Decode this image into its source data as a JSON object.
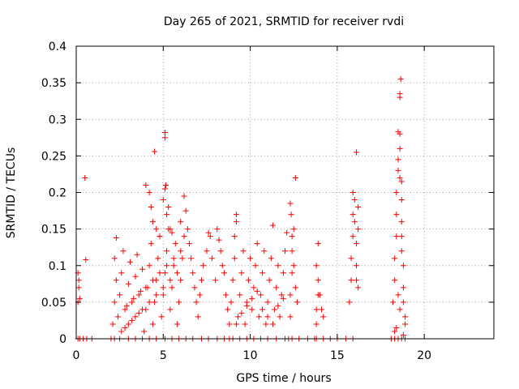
{
  "chart_data": {
    "type": "scatter",
    "title": "Day 265 of 2021, SRMTID for receiver rvdi",
    "xlabel": "GPS time / hours",
    "ylabel": "SRMTID / TECUs",
    "xlim": [
      0,
      24
    ],
    "ylim": [
      0,
      0.4
    ],
    "x_ticks": [
      0,
      5,
      10,
      15,
      20
    ],
    "x_tick_labels": [
      "0",
      "5",
      "10",
      "15",
      "20"
    ],
    "y_ticks": [
      0,
      0.05,
      0.1,
      0.15,
      0.2,
      0.25,
      0.3,
      0.35,
      0.4
    ],
    "y_tick_labels": [
      "0",
      "0.05",
      "0.1",
      "0.15",
      "0.2",
      "0.25",
      "0.3",
      "0.35",
      "0.4"
    ],
    "grid": true,
    "marker": "+",
    "color": "#ff0000",
    "series": [
      {
        "name": "SRMTID",
        "points": [
          [
            0.1,
            0.0
          ],
          [
            0.2,
            0.0
          ],
          [
            0.4,
            0.0
          ],
          [
            0.6,
            0.0
          ],
          [
            0.9,
            0.0
          ],
          [
            0.1,
            0.09
          ],
          [
            0.15,
            0.07
          ],
          [
            0.1,
            0.05
          ],
          [
            0.2,
            0.055
          ],
          [
            0.15,
            0.08
          ],
          [
            0.5,
            0.22
          ],
          [
            0.55,
            0.108
          ],
          [
            2.0,
            0.0
          ],
          [
            2.2,
            0.0
          ],
          [
            2.5,
            0.0
          ],
          [
            3.0,
            0.0
          ],
          [
            3.4,
            0.0
          ],
          [
            3.8,
            0.0
          ],
          [
            4.2,
            0.0
          ],
          [
            4.6,
            0.0
          ],
          [
            5.1,
            0.0
          ],
          [
            5.5,
            0.0
          ],
          [
            5.9,
            0.0
          ],
          [
            6.3,
            0.0
          ],
          [
            6.7,
            0.0
          ],
          [
            7.2,
            0.0
          ],
          [
            7.6,
            0.0
          ],
          [
            8.1,
            0.0
          ],
          [
            8.5,
            0.0
          ],
          [
            2.1,
            0.02
          ],
          [
            2.2,
            0.05
          ],
          [
            2.3,
            0.08
          ],
          [
            2.2,
            0.11
          ],
          [
            2.3,
            0.138
          ],
          [
            2.4,
            0.03
          ],
          [
            2.5,
            0.06
          ],
          [
            2.6,
            0.09
          ],
          [
            2.7,
            0.12
          ],
          [
            2.8,
            0.015
          ],
          [
            2.9,
            0.045
          ],
          [
            3.0,
            0.075
          ],
          [
            3.1,
            0.105
          ],
          [
            3.2,
            0.025
          ],
          [
            3.3,
            0.055
          ],
          [
            3.4,
            0.085
          ],
          [
            3.5,
            0.115
          ],
          [
            3.6,
            0.035
          ],
          [
            3.7,
            0.065
          ],
          [
            3.8,
            0.095
          ],
          [
            3.9,
            0.01
          ],
          [
            4.0,
            0.04
          ],
          [
            4.1,
            0.07
          ],
          [
            4.2,
            0.1
          ],
          [
            4.3,
            0.13
          ],
          [
            4.4,
            0.02
          ],
          [
            4.5,
            0.05
          ],
          [
            4.6,
            0.08
          ],
          [
            4.7,
            0.11
          ],
          [
            4.8,
            0.14
          ],
          [
            4.9,
            0.03
          ],
          [
            5.0,
            0.06
          ],
          [
            5.1,
            0.09
          ],
          [
            5.2,
            0.12
          ],
          [
            5.3,
            0.15
          ],
          [
            5.4,
            0.04
          ],
          [
            5.5,
            0.07
          ],
          [
            5.6,
            0.1
          ],
          [
            5.7,
            0.13
          ],
          [
            5.8,
            0.02
          ],
          [
            5.9,
            0.05
          ],
          [
            6.0,
            0.08
          ],
          [
            6.1,
            0.11
          ],
          [
            6.2,
            0.14
          ],
          [
            2.6,
            0.01
          ],
          [
            2.8,
            0.04
          ],
          [
            3.0,
            0.02
          ],
          [
            3.2,
            0.05
          ],
          [
            3.4,
            0.03
          ],
          [
            3.6,
            0.06
          ],
          [
            3.8,
            0.04
          ],
          [
            4.0,
            0.07
          ],
          [
            4.2,
            0.05
          ],
          [
            4.4,
            0.08
          ],
          [
            4.6,
            0.06
          ],
          [
            4.8,
            0.09
          ],
          [
            5.0,
            0.07
          ],
          [
            5.2,
            0.1
          ],
          [
            5.4,
            0.08
          ],
          [
            5.6,
            0.11
          ],
          [
            5.8,
            0.09
          ],
          [
            6.0,
            0.12
          ],
          [
            4.0,
            0.21
          ],
          [
            4.2,
            0.2
          ],
          [
            4.3,
            0.18
          ],
          [
            4.4,
            0.16
          ],
          [
            4.5,
            0.256
          ],
          [
            4.6,
            0.15
          ],
          [
            4.8,
            0.14
          ],
          [
            5.0,
            0.19
          ],
          [
            5.1,
            0.205
          ],
          [
            5.15,
            0.21
          ],
          [
            5.1,
            0.275
          ],
          [
            5.1,
            0.282
          ],
          [
            5.2,
            0.17
          ],
          [
            5.3,
            0.18
          ],
          [
            5.4,
            0.15
          ],
          [
            5.5,
            0.145
          ],
          [
            6.0,
            0.16
          ],
          [
            6.2,
            0.195
          ],
          [
            6.3,
            0.175
          ],
          [
            6.4,
            0.15
          ],
          [
            6.5,
            0.13
          ],
          [
            6.6,
            0.11
          ],
          [
            6.7,
            0.09
          ],
          [
            6.8,
            0.07
          ],
          [
            6.9,
            0.05
          ],
          [
            7.0,
            0.03
          ],
          [
            7.1,
            0.06
          ],
          [
            7.2,
            0.08
          ],
          [
            7.3,
            0.1
          ],
          [
            7.5,
            0.12
          ],
          [
            7.6,
            0.145
          ],
          [
            7.7,
            0.14
          ],
          [
            7.8,
            0.11
          ],
          [
            8.0,
            0.08
          ],
          [
            8.1,
            0.15
          ],
          [
            8.2,
            0.135
          ],
          [
            8.3,
            0.12
          ],
          [
            8.4,
            0.1
          ],
          [
            8.5,
            0.09
          ],
          [
            8.6,
            0.06
          ],
          [
            8.7,
            0.04
          ],
          [
            8.8,
            0.02
          ],
          [
            8.8,
            0.0
          ],
          [
            9.0,
            0.0
          ],
          [
            9.4,
            0.0
          ],
          [
            9.8,
            0.0
          ],
          [
            10.2,
            0.0
          ],
          [
            10.6,
            0.0
          ],
          [
            11.0,
            0.0
          ],
          [
            11.5,
            0.0
          ],
          [
            12.0,
            0.0
          ],
          [
            12.4,
            0.0
          ],
          [
            12.8,
            0.0
          ],
          [
            13.3,
            0.0
          ],
          [
            13.8,
            0.0
          ],
          [
            14.2,
            0.0
          ],
          [
            14.6,
            0.0
          ],
          [
            15.0,
            0.0
          ],
          [
            15.5,
            0.0
          ],
          [
            15.9,
            0.0
          ],
          [
            8.9,
            0.05
          ],
          [
            9.0,
            0.08
          ],
          [
            9.1,
            0.11
          ],
          [
            9.1,
            0.14
          ],
          [
            9.2,
            0.17
          ],
          [
            9.2,
            0.16
          ],
          [
            9.3,
            0.03
          ],
          [
            9.4,
            0.06
          ],
          [
            9.5,
            0.09
          ],
          [
            9.6,
            0.12
          ],
          [
            9.7,
            0.02
          ],
          [
            9.8,
            0.05
          ],
          [
            9.9,
            0.08
          ],
          [
            10.0,
            0.11
          ],
          [
            10.1,
            0.04
          ],
          [
            10.2,
            0.07
          ],
          [
            10.3,
            0.1
          ],
          [
            10.4,
            0.13
          ],
          [
            10.5,
            0.03
          ],
          [
            10.6,
            0.06
          ],
          [
            10.7,
            0.09
          ],
          [
            10.8,
            0.12
          ],
          [
            10.9,
            0.02
          ],
          [
            11.0,
            0.05
          ],
          [
            11.1,
            0.08
          ],
          [
            11.2,
            0.11
          ],
          [
            11.3,
            0.155
          ],
          [
            11.4,
            0.04
          ],
          [
            11.5,
            0.07
          ],
          [
            11.6,
            0.1
          ],
          [
            11.7,
            0.03
          ],
          [
            11.8,
            0.06
          ],
          [
            11.9,
            0.09
          ],
          [
            12.0,
            0.12
          ],
          [
            12.1,
            0.145
          ],
          [
            9.2,
            0.02
          ],
          [
            9.5,
            0.035
          ],
          [
            9.8,
            0.045
          ],
          [
            10.1,
            0.055
          ],
          [
            10.4,
            0.065
          ],
          [
            10.7,
            0.04
          ],
          [
            11.0,
            0.03
          ],
          [
            11.3,
            0.02
          ],
          [
            11.6,
            0.045
          ],
          [
            11.9,
            0.055
          ],
          [
            12.2,
            0.0
          ],
          [
            12.3,
            0.03
          ],
          [
            12.3,
            0.06
          ],
          [
            12.4,
            0.09
          ],
          [
            12.4,
            0.12
          ],
          [
            12.5,
            0.15
          ],
          [
            12.3,
            0.185
          ],
          [
            12.35,
            0.17
          ],
          [
            12.4,
            0.14
          ],
          [
            12.5,
            0.1
          ],
          [
            12.6,
            0.07
          ],
          [
            12.6,
            0.22
          ],
          [
            12.7,
            0.05
          ],
          [
            13.7,
            0.0
          ],
          [
            13.8,
            0.02
          ],
          [
            13.8,
            0.04
          ],
          [
            13.9,
            0.06
          ],
          [
            13.9,
            0.08
          ],
          [
            13.8,
            0.1
          ],
          [
            13.9,
            0.13
          ],
          [
            14.0,
            0.06
          ],
          [
            14.1,
            0.04
          ],
          [
            14.2,
            0.03
          ],
          [
            15.7,
            0.05
          ],
          [
            15.8,
            0.08
          ],
          [
            15.8,
            0.11
          ],
          [
            15.9,
            0.14
          ],
          [
            15.9,
            0.17
          ],
          [
            15.9,
            0.2
          ],
          [
            16.0,
            0.19
          ],
          [
            16.0,
            0.16
          ],
          [
            16.1,
            0.13
          ],
          [
            16.1,
            0.1
          ],
          [
            16.1,
            0.08
          ],
          [
            16.2,
            0.15
          ],
          [
            16.2,
            0.18
          ],
          [
            16.1,
            0.255
          ],
          [
            16.2,
            0.07
          ],
          [
            18.1,
            0.0
          ],
          [
            18.3,
            0.0
          ],
          [
            18.5,
            0.0
          ],
          [
            18.7,
            0.0
          ],
          [
            18.9,
            0.0
          ],
          [
            18.2,
            0.05
          ],
          [
            18.3,
            0.08
          ],
          [
            18.3,
            0.11
          ],
          [
            18.4,
            0.14
          ],
          [
            18.4,
            0.17
          ],
          [
            18.4,
            0.2
          ],
          [
            18.5,
            0.23
          ],
          [
            18.5,
            0.245
          ],
          [
            18.6,
            0.26
          ],
          [
            18.6,
            0.28
          ],
          [
            18.5,
            0.283
          ],
          [
            18.6,
            0.33
          ],
          [
            18.6,
            0.335
          ],
          [
            18.65,
            0.355
          ],
          [
            18.6,
            0.22
          ],
          [
            18.7,
            0.215
          ],
          [
            18.7,
            0.19
          ],
          [
            18.7,
            0.16
          ],
          [
            18.7,
            0.14
          ],
          [
            18.7,
            0.12
          ],
          [
            18.8,
            0.1
          ],
          [
            18.8,
            0.07
          ],
          [
            18.8,
            0.05
          ],
          [
            18.9,
            0.03
          ],
          [
            18.9,
            0.02
          ],
          [
            18.6,
            0.04
          ],
          [
            18.5,
            0.06
          ],
          [
            18.4,
            0.015
          ],
          [
            18.3,
            0.01
          ],
          [
            18.8,
            0.005
          ]
        ]
      }
    ]
  }
}
